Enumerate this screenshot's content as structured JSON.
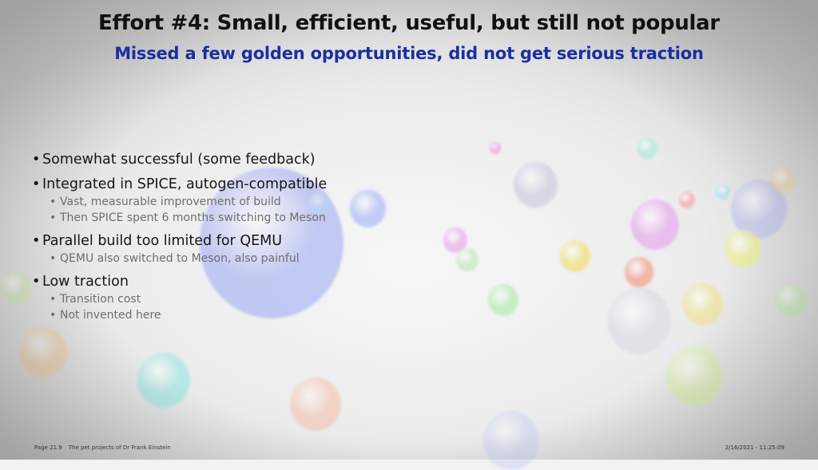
{
  "slide": {
    "title": "Effort #4: Small, efficient, useful, but still not popular",
    "subtitle": "Missed a few golden opportunities, did not get serious traction",
    "bullet_glyph": "•",
    "bullets": [
      {
        "text": "Somewhat successful (some feedback)",
        "sub": []
      },
      {
        "text": "Integrated in SPICE, autogen-compatible",
        "sub": [
          "Vast, measurable improvement of build",
          "Then SPICE spent 6 months switching to Meson"
        ]
      },
      {
        "text": "Parallel build too limited for QEMU",
        "sub": [
          "QEMU also switched to Meson, also painful"
        ]
      },
      {
        "text": "Low traction",
        "sub": [
          "Transition cost",
          "Not invented here"
        ]
      }
    ]
  },
  "footer": {
    "page": "Page 21.9",
    "deck": "The pet projects of Dr Frank Einstein",
    "datetime": "2/16/2021 - 11:25:09"
  },
  "colors": {
    "title": "#111111",
    "subtitle": "#1a2fa0",
    "sub_bullet": "#6e6e6e",
    "background": "#f2f2f2"
  }
}
